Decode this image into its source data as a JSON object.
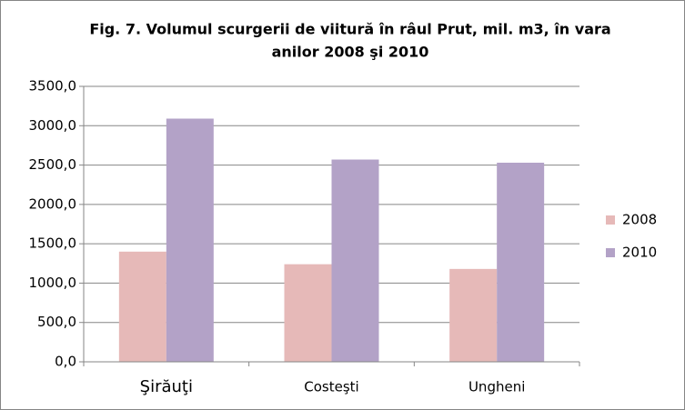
{
  "chart_data": {
    "type": "bar",
    "title": [
      "Fig.  7. Volumul scurgerii de viitură în râul Prut, mil. m3, în vara",
      "anilor 2008 şi 2010"
    ],
    "categories": [
      "Şirăuţi",
      "Costeşti",
      "Ungheni"
    ],
    "series": [
      {
        "name": "2008",
        "color": "#e6b9b8",
        "values": [
          1400,
          1240,
          1180
        ]
      },
      {
        "name": "2010",
        "color": "#b3a2c7",
        "values": [
          3090,
          2570,
          2530
        ]
      }
    ],
    "ylim": [
      0,
      3500
    ],
    "yticks": [
      {
        "value": 0,
        "label": "0,0"
      },
      {
        "value": 500,
        "label": "500,0"
      },
      {
        "value": 1000,
        "label": "1000,0"
      },
      {
        "value": 1500,
        "label": "1500,0"
      },
      {
        "value": 2000,
        "label": "2000,0"
      },
      {
        "value": 2500,
        "label": "2500,0"
      },
      {
        "value": 3000,
        "label": "3000,0"
      },
      {
        "value": 3500,
        "label": "3500,0"
      }
    ],
    "grid": true,
    "legend": "right"
  }
}
